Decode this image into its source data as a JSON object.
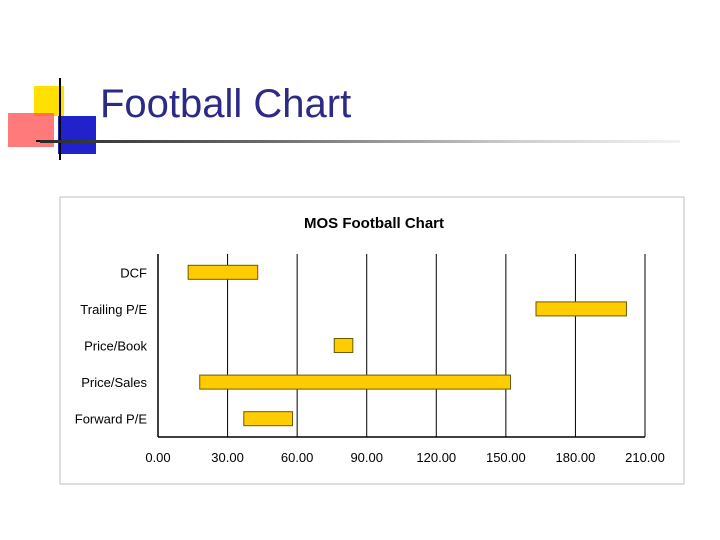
{
  "slide": {
    "title": "Football Chart"
  },
  "colors": {
    "title": "#2b2a86",
    "bar_fill": "#ffcc00",
    "bar_stroke": "#6b5a00",
    "grid": "#000000",
    "logo_yellow": "#ffe000",
    "logo_blue": "#2222cc",
    "logo_red": "#ff4d4d"
  },
  "chart_data": {
    "type": "bar",
    "orientation": "horizontal",
    "style": "floating-range",
    "title": "MOS Football Chart",
    "xlabel": "",
    "ylabel": "",
    "xlim": [
      0,
      210
    ],
    "xticks": [
      0,
      30,
      60,
      90,
      120,
      150,
      180,
      210
    ],
    "xtick_labels": [
      "0.00",
      "30.00",
      "60.00",
      "90.00",
      "120.00",
      "150.00",
      "180.00",
      "210.00"
    ],
    "grid": "vertical",
    "legend": "none",
    "categories": [
      "DCF",
      "Trailing P/E",
      "Price/Book",
      "Price/Sales",
      "Forward P/E"
    ],
    "ranges": [
      {
        "category": "DCF",
        "low": 13,
        "high": 43
      },
      {
        "category": "Trailing P/E",
        "low": 163,
        "high": 202
      },
      {
        "category": "Price/Book",
        "low": 76,
        "high": 84
      },
      {
        "category": "Price/Sales",
        "low": 18,
        "high": 152
      },
      {
        "category": "Forward P/E",
        "low": 37,
        "high": 58
      }
    ]
  }
}
